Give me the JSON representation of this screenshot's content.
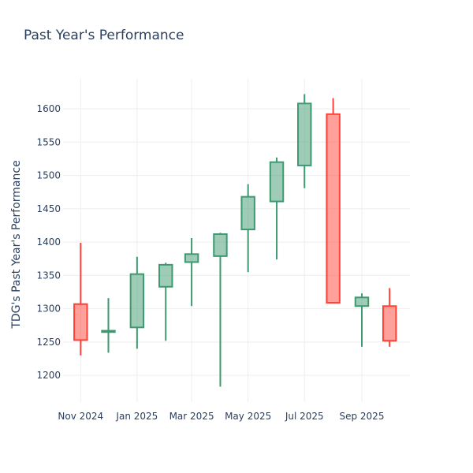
{
  "chart_data": {
    "type": "candlestick",
    "title": "Past Year's Performance",
    "ylabel": "TDG's Past Year's Performance",
    "xlabel": "",
    "ylim": [
      1160,
      1645
    ],
    "yticks": [
      1200,
      1250,
      1300,
      1350,
      1400,
      1450,
      1500,
      1550,
      1600
    ],
    "xticks": [
      {
        "label": "Nov 2024",
        "date": "2024-11-01"
      },
      {
        "label": "Jan 2025",
        "date": "2025-01-01"
      },
      {
        "label": "Mar 2025",
        "date": "2025-03-01"
      },
      {
        "label": "May 2025",
        "date": "2025-05-01"
      },
      {
        "label": "Jul 2025",
        "date": "2025-07-01"
      },
      {
        "label": "Sep 2025",
        "date": "2025-09-01"
      }
    ],
    "xrange": [
      "2024-10-13",
      "2025-10-23"
    ],
    "grid": true,
    "colors": {
      "increasing": "#3d9970",
      "decreasing": "#ff4136"
    },
    "candles": [
      {
        "date": "2024-11-01",
        "open": 1307,
        "high": 1399,
        "low": 1230,
        "close": 1253
      },
      {
        "date": "2024-12-01",
        "open": 1265,
        "high": 1316,
        "low": 1234,
        "close": 1267
      },
      {
        "date": "2025-01-01",
        "open": 1272,
        "high": 1378,
        "low": 1240,
        "close": 1352
      },
      {
        "date": "2025-02-01",
        "open": 1333,
        "high": 1369,
        "low": 1252,
        "close": 1366
      },
      {
        "date": "2025-03-01",
        "open": 1370,
        "high": 1406,
        "low": 1304,
        "close": 1382
      },
      {
        "date": "2025-04-01",
        "open": 1379,
        "high": 1414,
        "low": 1183,
        "close": 1412
      },
      {
        "date": "2025-05-01",
        "open": 1419,
        "high": 1487,
        "low": 1355,
        "close": 1468
      },
      {
        "date": "2025-06-01",
        "open": 1461,
        "high": 1527,
        "low": 1374,
        "close": 1520
      },
      {
        "date": "2025-07-01",
        "open": 1515,
        "high": 1622,
        "low": 1481,
        "close": 1608
      },
      {
        "date": "2025-08-01",
        "open": 1592,
        "high": 1616,
        "low": 1309,
        "close": 1309
      },
      {
        "date": "2025-09-01",
        "open": 1304,
        "high": 1323,
        "low": 1243,
        "close": 1317
      },
      {
        "date": "2025-10-01",
        "open": 1304,
        "high": 1331,
        "low": 1243,
        "close": 1252
      }
    ]
  }
}
